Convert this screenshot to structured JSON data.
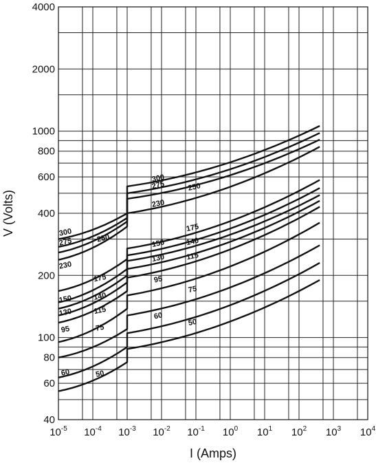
{
  "chart_data": {
    "type": "line",
    "title": "",
    "xlabel": "I (Amps)",
    "ylabel": "V (Volts)",
    "x_scale": "log",
    "y_scale": "log",
    "xlim": [
      1e-05,
      10000
    ],
    "ylim": [
      40,
      4000
    ],
    "grid": true,
    "legend": "inline",
    "x_ticks": [
      {
        "base": "10",
        "exp": "-5"
      },
      {
        "base": "10",
        "exp": "-4"
      },
      {
        "base": "10",
        "exp": "-3"
      },
      {
        "base": "10",
        "exp": "-2"
      },
      {
        "base": "10",
        "exp": "-1"
      },
      {
        "base": "10",
        "exp": "0"
      },
      {
        "base": "10",
        "exp": "1"
      },
      {
        "base": "10",
        "exp": "2"
      },
      {
        "base": "10",
        "exp": "3"
      },
      {
        "base": "10",
        "exp": "4"
      }
    ],
    "y_ticks": [
      "40",
      "60",
      "80",
      "100",
      "200",
      "400",
      "600",
      "800",
      "1000",
      "2000",
      "4000"
    ],
    "series": [
      {
        "name": "300",
        "x": [
          1e-05,
          0.001,
          0.001,
          400
        ],
        "y": [
          300,
          400,
          540,
          1060
        ]
      },
      {
        "name": "275",
        "x": [
          1e-05,
          0.001,
          0.001,
          400
        ],
        "y": [
          275,
          380,
          500,
          980
        ]
      },
      {
        "name": "250",
        "x": [
          1e-05,
          0.001,
          0.001,
          400
        ],
        "y": [
          258,
          365,
          470,
          910
        ]
      },
      {
        "name": "230",
        "x": [
          1e-05,
          0.001,
          0.001,
          400
        ],
        "y": [
          238,
          345,
          400,
          840
        ]
      },
      {
        "name": "175",
        "x": [
          1e-05,
          0.001,
          0.001,
          400
        ],
        "y": [
          168,
          240,
          270,
          580
        ]
      },
      {
        "name": "150",
        "x": [
          1e-05,
          0.001,
          0.001,
          400
        ],
        "y": [
          148,
          215,
          250,
          530
        ]
      },
      {
        "name": "140",
        "x": [
          1e-05,
          0.001,
          0.001,
          400
        ],
        "y": [
          138,
          200,
          235,
          490
        ]
      },
      {
        "name": "130",
        "x": [
          1e-05,
          0.001,
          0.001,
          400
        ],
        "y": [
          128,
          185,
          215,
          460
        ]
      },
      {
        "name": "115",
        "x": [
          1e-05,
          0.001,
          0.001,
          400
        ],
        "y": [
          118,
          168,
          195,
          430
        ]
      },
      {
        "name": "95",
        "x": [
          1e-05,
          0.001,
          0.001,
          400
        ],
        "y": [
          95,
          138,
          160,
          360
        ]
      },
      {
        "name": "75",
        "x": [
          1e-05,
          0.001,
          0.001,
          400
        ],
        "y": [
          80,
          110,
          128,
          280
        ]
      },
      {
        "name": "60",
        "x": [
          1e-05,
          0.001,
          0.001,
          400
        ],
        "y": [
          64,
          90,
          105,
          230
        ]
      },
      {
        "name": "50",
        "x": [
          1e-05,
          0.001,
          0.001,
          400
        ],
        "y": [
          55,
          76,
          88,
          190
        ]
      }
    ],
    "annotations": [
      {
        "text": "300",
        "x": 1.58e-05,
        "y": 325
      },
      {
        "text": "275",
        "x": 1.58e-05,
        "y": 292
      },
      {
        "text": "250",
        "x": 0.0002,
        "y": 304
      },
      {
        "text": "230",
        "x": 1.58e-05,
        "y": 225
      },
      {
        "text": "300",
        "x": 0.0079,
        "y": 594
      },
      {
        "text": "275",
        "x": 0.0079,
        "y": 550
      },
      {
        "text": "250",
        "x": 0.089,
        "y": 539
      },
      {
        "text": "230",
        "x": 0.0079,
        "y": 448
      },
      {
        "text": "175",
        "x": 0.00016,
        "y": 195
      },
      {
        "text": "150",
        "x": 1.58e-05,
        "y": 154
      },
      {
        "text": "140",
        "x": 0.00016,
        "y": 159
      },
      {
        "text": "130",
        "x": 1.58e-05,
        "y": 133
      },
      {
        "text": "115",
        "x": 0.00016,
        "y": 136
      },
      {
        "text": "95",
        "x": 1.58e-05,
        "y": 110
      },
      {
        "text": "75",
        "x": 0.00016,
        "y": 112
      },
      {
        "text": "60",
        "x": 1.58e-05,
        "y": 68
      },
      {
        "text": "50",
        "x": 0.00016,
        "y": 67
      },
      {
        "text": "175",
        "x": 0.079,
        "y": 342
      },
      {
        "text": "150",
        "x": 0.0079,
        "y": 287
      },
      {
        "text": "140",
        "x": 0.079,
        "y": 293
      },
      {
        "text": "130",
        "x": 0.0079,
        "y": 244
      },
      {
        "text": "115",
        "x": 0.079,
        "y": 249
      },
      {
        "text": "95",
        "x": 0.0079,
        "y": 192
      },
      {
        "text": "75",
        "x": 0.079,
        "y": 172
      },
      {
        "text": "60",
        "x": 0.0079,
        "y": 128
      },
      {
        "text": "50",
        "x": 0.079,
        "y": 119
      }
    ]
  }
}
